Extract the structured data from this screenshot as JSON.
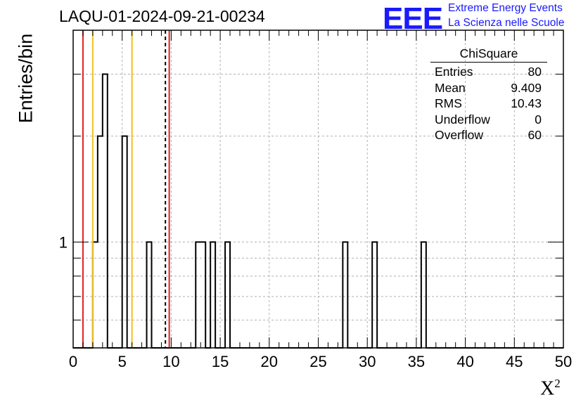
{
  "header": {
    "title": "LAQU-01-2024-09-21-00234",
    "logo_text": "EEE",
    "logo_line1": "Extreme Energy Events",
    "logo_line2": "La Scienza nelle Scuole"
  },
  "stats_box": {
    "title": "ChiSquare",
    "rows": [
      {
        "label": "Entries",
        "value": "80"
      },
      {
        "label": "Mean",
        "value": "9.409"
      },
      {
        "label": "RMS",
        "value": "10.43"
      },
      {
        "label": "Underflow",
        "value": "0"
      },
      {
        "label": "Overflow",
        "value": "60"
      }
    ]
  },
  "colors": {
    "histogram": "#000000",
    "red_line": "#dd2222",
    "yellow_line": "#f0c020",
    "dashed_line": "#000000",
    "grid": "#b0b0b0",
    "logo": "#1a1aff"
  },
  "chart_data": {
    "type": "histogram",
    "title": "LAQU-01-2024-09-21-00234",
    "xlabel": "X",
    "xlabel_sup": "2",
    "ylabel": "Entries/bin",
    "xlim": [
      0,
      50
    ],
    "ylog": true,
    "ylim": [
      0.5,
      4
    ],
    "x_ticks": [
      0,
      5,
      10,
      15,
      20,
      25,
      30,
      35,
      40,
      45,
      50
    ],
    "y_tick_labels": [
      {
        "value": 1,
        "label": "1"
      }
    ],
    "grid": true,
    "bin_width": 0.5,
    "bins": [
      {
        "x": 2.0,
        "count": 1
      },
      {
        "x": 2.5,
        "count": 2
      },
      {
        "x": 3.0,
        "count": 3
      },
      {
        "x": 5.0,
        "count": 2
      },
      {
        "x": 7.5,
        "count": 1
      },
      {
        "x": 12.5,
        "count": 1
      },
      {
        "x": 13.0,
        "count": 1
      },
      {
        "x": 14.0,
        "count": 1
      },
      {
        "x": 15.5,
        "count": 1
      },
      {
        "x": 27.5,
        "count": 1
      },
      {
        "x": 30.5,
        "count": 1
      },
      {
        "x": 35.5,
        "count": 1
      }
    ],
    "reference_lines": [
      {
        "x": 1.0,
        "style": "red"
      },
      {
        "x": 9.8,
        "style": "red"
      },
      {
        "x": 2.0,
        "style": "yellow"
      },
      {
        "x": 6.0,
        "style": "yellow"
      },
      {
        "x": 9.409,
        "style": "dashed"
      }
    ]
  }
}
